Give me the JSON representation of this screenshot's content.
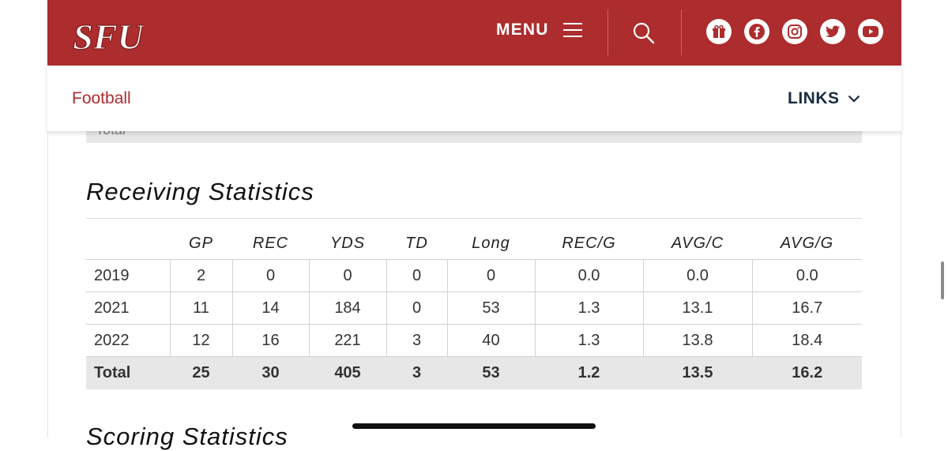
{
  "header": {
    "logo_text": "SFU",
    "menu_label": "MENU",
    "social_icons": [
      "gift-icon",
      "facebook-icon",
      "instagram-icon",
      "twitter-icon",
      "youtube-icon"
    ],
    "brand_color": "#ad2c2d"
  },
  "subnav": {
    "sport": "Football",
    "links_label": "LINKS"
  },
  "previous_table": {
    "total_row_partial": "Total"
  },
  "receiving": {
    "title": "Receiving Statistics",
    "columns": [
      "",
      "GP",
      "REC",
      "YDS",
      "TD",
      "Long",
      "REC/G",
      "AVG/C",
      "AVG/G"
    ],
    "rows": [
      [
        "2019",
        "2",
        "0",
        "0",
        "0",
        "0",
        "0.0",
        "0.0",
        "0.0"
      ],
      [
        "2021",
        "11",
        "14",
        "184",
        "0",
        "53",
        "1.3",
        "13.1",
        "16.7"
      ],
      [
        "2022",
        "12",
        "16",
        "221",
        "3",
        "40",
        "1.3",
        "13.8",
        "18.4"
      ]
    ],
    "total": [
      "Total",
      "25",
      "30",
      "405",
      "3",
      "53",
      "1.2",
      "13.5",
      "16.2"
    ]
  },
  "next_section": {
    "title": "Scoring Statistics"
  }
}
